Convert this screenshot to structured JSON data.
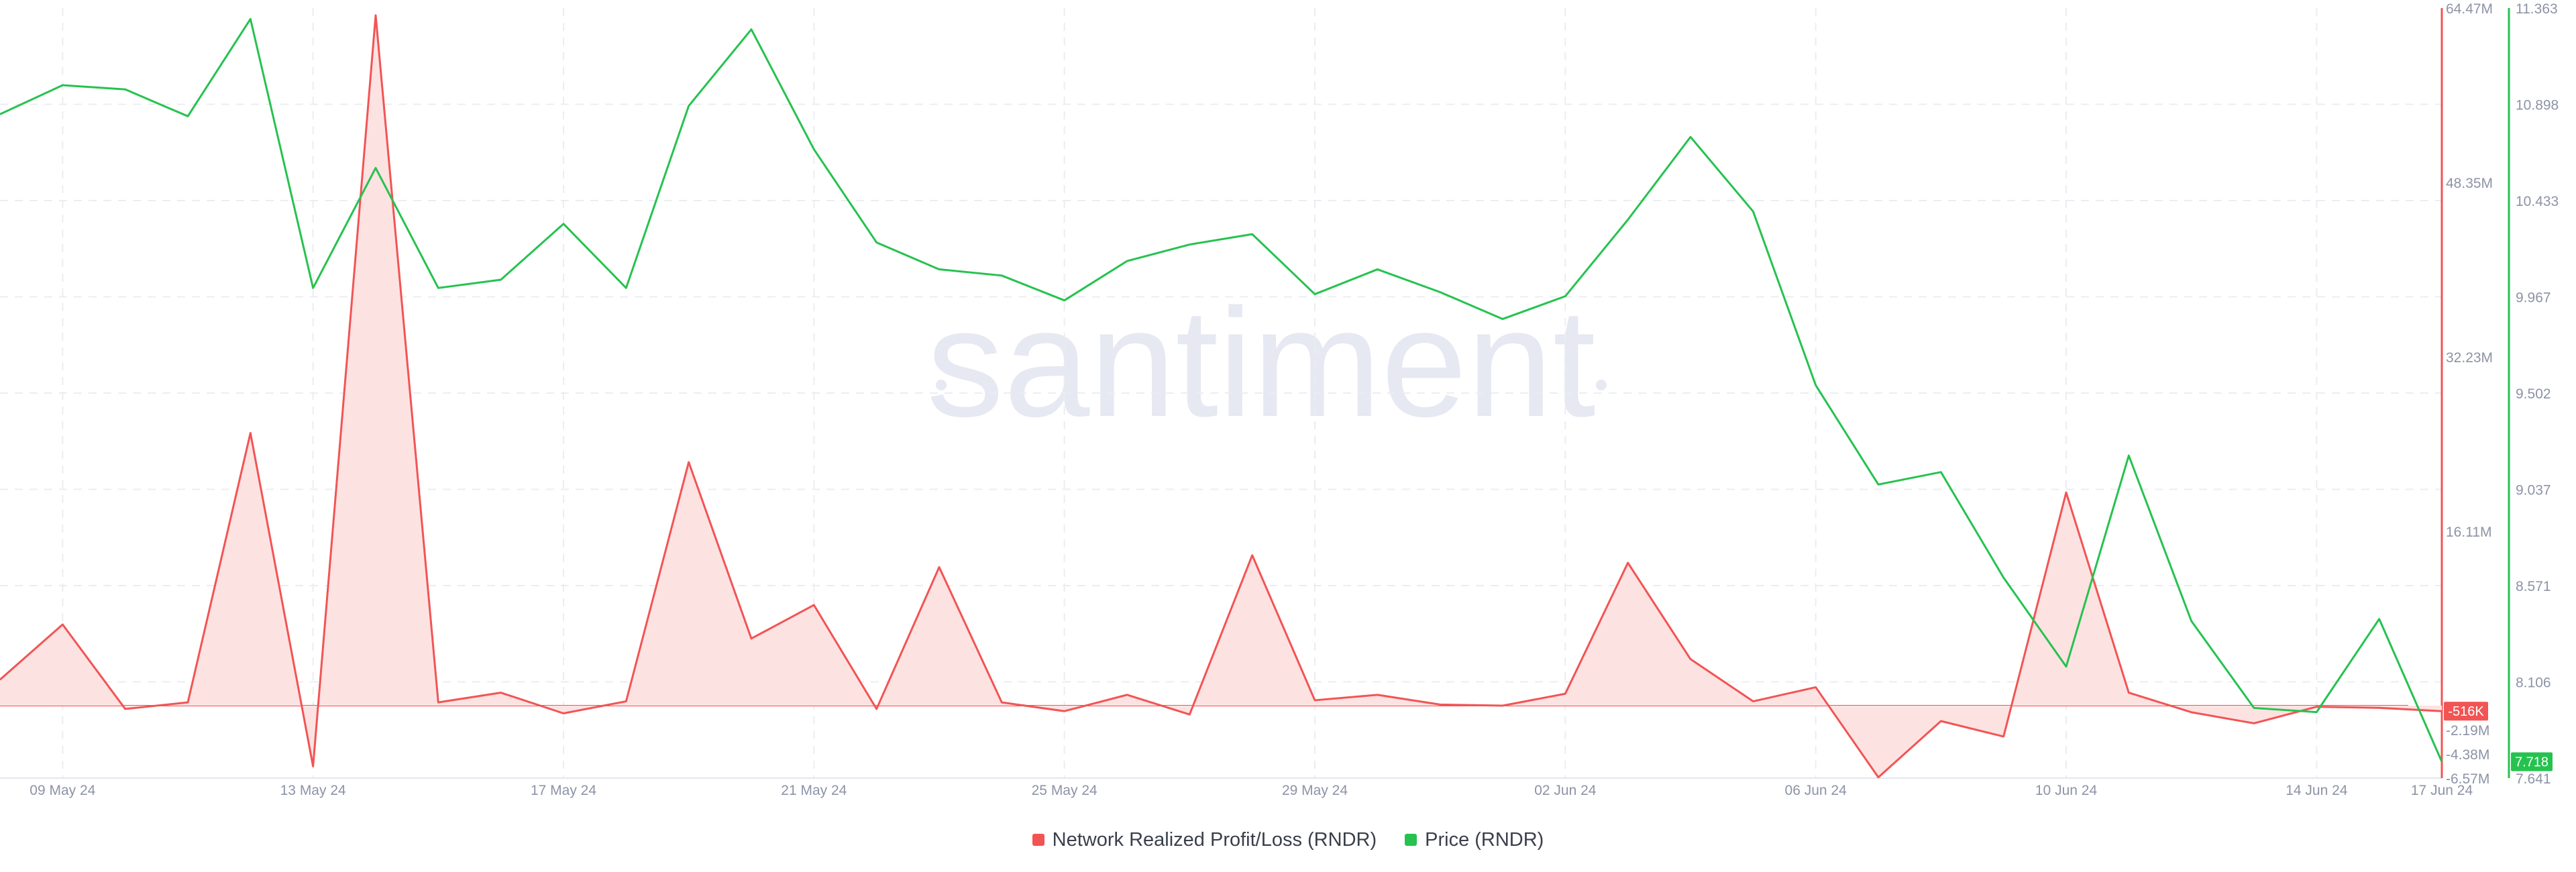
{
  "watermark": "santiment",
  "legend": {
    "pnl_label": "Network Realized Profit/Loss (RNDR)",
    "price_label": "Price (RNDR)"
  },
  "chart_data": {
    "type": "line",
    "x_ticks": [
      "09 May 24",
      "13 May 24",
      "17 May 24",
      "21 May 24",
      "25 May 24",
      "29 May 24",
      "02 Jun 24",
      "06 Jun 24",
      "10 Jun 24",
      "14 Jun 24",
      "17 Jun 24"
    ],
    "left_axis_ticks": [
      "64.47M",
      "48.35M",
      "32.23M",
      "16.11M",
      "-2.19M",
      "-4.38M",
      "-6.57M"
    ],
    "right_axis_ticks": [
      "11.363",
      "10.898",
      "10.433",
      "9.967",
      "9.502",
      "9.037",
      "8.571",
      "8.106",
      "7.641"
    ],
    "pnl_ylim": [
      -6.57,
      64.47
    ],
    "price_ylim": [
      7.641,
      11.363
    ],
    "series": [
      {
        "name": "Network Realized Profit/Loss (RNDR)",
        "color": "#f25454",
        "fill": "#fde2e2",
        "unit": "M",
        "axis": "left",
        "points": [
          [
            "08 May 24",
            2.4
          ],
          [
            "09 May 24",
            7.5
          ],
          [
            "10 May 24",
            -0.3
          ],
          [
            "11 May 24",
            0.3
          ],
          [
            "12 May 24",
            25.2
          ],
          [
            "13 May 24",
            -5.5
          ],
          [
            "14 May 24",
            63.8
          ],
          [
            "15 May 24",
            0.3
          ],
          [
            "16 May 24",
            1.2
          ],
          [
            "17 May 24",
            -0.7
          ],
          [
            "18 May 24",
            0.4
          ],
          [
            "19 May 24",
            22.5
          ],
          [
            "20 May 24",
            6.2
          ],
          [
            "21 May 24",
            9.3
          ],
          [
            "22 May 24",
            -0.3
          ],
          [
            "23 May 24",
            12.8
          ],
          [
            "24 May 24",
            0.3
          ],
          [
            "25 May 24",
            -0.5
          ],
          [
            "26 May 24",
            1.0
          ],
          [
            "27 May 24",
            -0.8
          ],
          [
            "28 May 24",
            13.9
          ],
          [
            "29 May 24",
            0.5
          ],
          [
            "30 May 24",
            1.0
          ],
          [
            "31 May 24",
            0.1
          ],
          [
            "01 Jun 24",
            0.0
          ],
          [
            "02 Jun 24",
            1.1
          ],
          [
            "03 Jun 24",
            13.2
          ],
          [
            "04 Jun 24",
            4.3
          ],
          [
            "05 Jun 24",
            0.4
          ],
          [
            "06 Jun 24",
            1.7
          ],
          [
            "07 Jun 24",
            -6.5
          ],
          [
            "08 Jun 24",
            -1.4
          ],
          [
            "09 Jun 24",
            -2.8
          ],
          [
            "10 Jun 24",
            19.7
          ],
          [
            "11 Jun 24",
            1.2
          ],
          [
            "12 Jun 24",
            -0.6
          ],
          [
            "13 Jun 24",
            -1.6
          ],
          [
            "14 Jun 24",
            -0.1
          ],
          [
            "15 Jun 24",
            -0.2
          ],
          [
            "16 Jun 24",
            -0.5
          ]
        ],
        "last_value_label": "-516K"
      },
      {
        "name": "Price (RNDR)",
        "color": "#26c24f",
        "unit": "USD",
        "axis": "right",
        "points": [
          [
            "08 May 24",
            10.85
          ],
          [
            "09 May 24",
            10.99
          ],
          [
            "10 May 24",
            10.97
          ],
          [
            "11 May 24",
            10.84
          ],
          [
            "12 May 24",
            11.31
          ],
          [
            "13 May 24",
            10.01
          ],
          [
            "14 May 24",
            10.59
          ],
          [
            "15 May 24",
            10.01
          ],
          [
            "16 May 24",
            10.05
          ],
          [
            "17 May 24",
            10.32
          ],
          [
            "18 May 24",
            10.01
          ],
          [
            "19 May 24",
            10.89
          ],
          [
            "20 May 24",
            11.26
          ],
          [
            "21 May 24",
            10.68
          ],
          [
            "22 May 24",
            10.23
          ],
          [
            "23 May 24",
            10.1
          ],
          [
            "24 May 24",
            10.07
          ],
          [
            "25 May 24",
            9.95
          ],
          [
            "26 May 24",
            10.14
          ],
          [
            "27 May 24",
            10.22
          ],
          [
            "28 May 24",
            10.27
          ],
          [
            "29 May 24",
            9.98
          ],
          [
            "30 May 24",
            10.1
          ],
          [
            "31 May 24",
            9.99
          ],
          [
            "01 Jun 24",
            9.86
          ],
          [
            "02 Jun 24",
            9.97
          ],
          [
            "03 Jun 24",
            10.34
          ],
          [
            "04 Jun 24",
            10.74
          ],
          [
            "05 Jun 24",
            10.38
          ],
          [
            "06 Jun 24",
            9.54
          ],
          [
            "07 Jun 24",
            9.06
          ],
          [
            "08 Jun 24",
            9.12
          ],
          [
            "09 Jun 24",
            8.61
          ],
          [
            "10 Jun 24",
            8.18
          ],
          [
            "11 Jun 24",
            9.2
          ],
          [
            "12 Jun 24",
            8.4
          ],
          [
            "13 Jun 24",
            7.98
          ],
          [
            "14 Jun 24",
            7.96
          ],
          [
            "15 Jun 24",
            8.41
          ],
          [
            "16 Jun 24",
            7.72
          ]
        ],
        "last_value_label": "7.718"
      }
    ],
    "grid": true,
    "legend_position": "bottom-center"
  }
}
